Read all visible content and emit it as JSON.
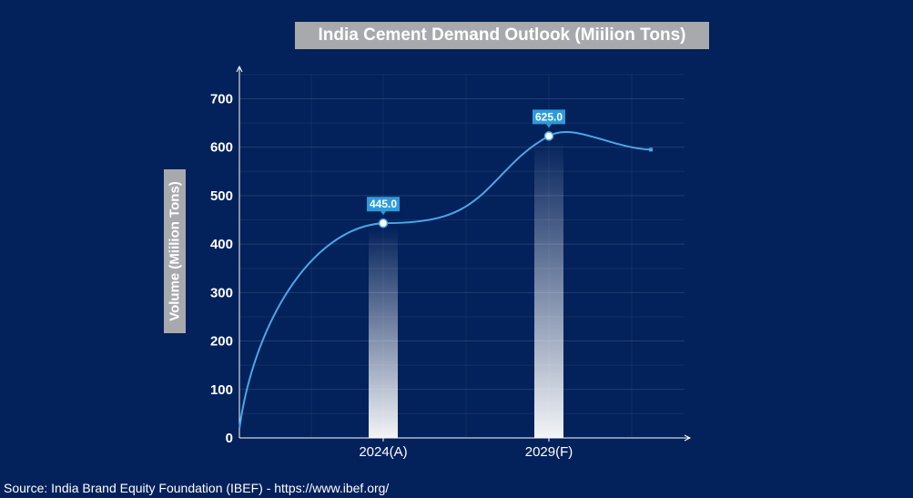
{
  "chart_data": {
    "type": "line",
    "title": "India Cement Demand Outlook (Miilion Tons)",
    "ylabel": "Volume  (Miilion Tons)",
    "xlabel": "",
    "categories": [
      "2024(A)",
      "2029(F)"
    ],
    "series": [
      {
        "values": [
          445.0,
          625.0
        ]
      }
    ],
    "data_labels": [
      "445.0",
      "625.0"
    ],
    "yticks": [
      0,
      100,
      200,
      300,
      400,
      500,
      600,
      700
    ],
    "ylim": [
      0,
      750
    ],
    "grid": true,
    "colors": {
      "background": "#03215a",
      "line": "#4aa8e8",
      "label_bg": "#2f9ad8",
      "title_bg": "#a7a9ad"
    }
  },
  "source": "Source: India Brand Equity Foundation (IBEF) - https://www.ibef.org/"
}
